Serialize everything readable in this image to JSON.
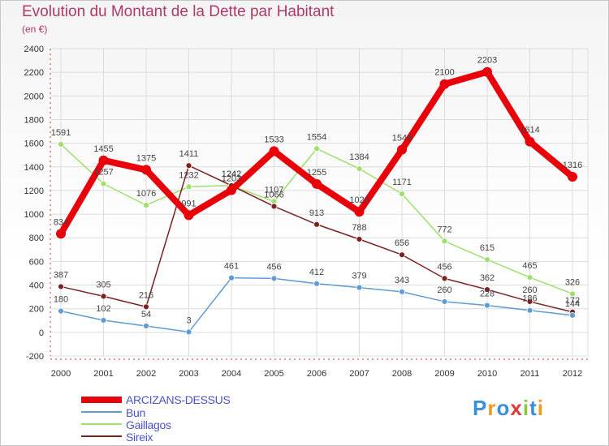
{
  "title": "Evolution du Montant de la Dette par Habitant",
  "subtitle": "(en €)",
  "brand": "Proxiti",
  "chart_data": {
    "type": "line",
    "x": [
      "2000",
      "2001",
      "2002",
      "2003",
      "2004",
      "2005",
      "2006",
      "2007",
      "2008",
      "2009",
      "2010",
      "2011",
      "2012"
    ],
    "ylim": [
      -200,
      2400
    ],
    "yticks": [
      "-200",
      "0",
      "200",
      "400",
      "600",
      "800",
      "1000",
      "1200",
      "1400",
      "1600",
      "1800",
      "2000",
      "2200",
      "2400"
    ],
    "grid": true,
    "legend_position": "bottom-left",
    "series": [
      {
        "name": "ARCIZANS-DESSUS",
        "color": "#e8000a",
        "values": [
          834,
          1455,
          1375,
          991,
          1203,
          1533,
          1255,
          1020,
          1545,
          2100,
          2203,
          1614,
          1316
        ],
        "labels": [
          "834",
          "1455",
          "1375",
          "991",
          "1203",
          "1533",
          "1255",
          "1020",
          "1545",
          "2100",
          "2203",
          "1614",
          "1316"
        ]
      },
      {
        "name": "Bun",
        "color": "#5f9bd5",
        "values": [
          180,
          102,
          54,
          3,
          461,
          456,
          412,
          379,
          343,
          260,
          228,
          186,
          144
        ],
        "labels": [
          "180",
          "102",
          "54",
          "3",
          "461",
          "456",
          "412",
          "379",
          "343",
          "260",
          "228",
          "186",
          "144"
        ]
      },
      {
        "name": "Gaillagos",
        "color": "#9ee06b",
        "values": [
          1591,
          1257,
          1076,
          1232,
          1242,
          1107,
          1554,
          1384,
          1171,
          772,
          615,
          465,
          326
        ],
        "labels": [
          "1591",
          "1257",
          "1076",
          "1232",
          "1242",
          "1107",
          "1554",
          "1384",
          "1171",
          "772",
          "615",
          "465",
          "326"
        ]
      },
      {
        "name": "Sireix",
        "color": "#7c2020",
        "values": [
          387,
          305,
          216,
          1411,
          1242,
          1066,
          913,
          788,
          656,
          456,
          362,
          260,
          172
        ],
        "labels": [
          "387",
          "305",
          "216",
          "1411",
          "1242",
          "1066",
          "913",
          "788",
          "656",
          "456",
          "362",
          "260",
          "172"
        ]
      }
    ]
  }
}
